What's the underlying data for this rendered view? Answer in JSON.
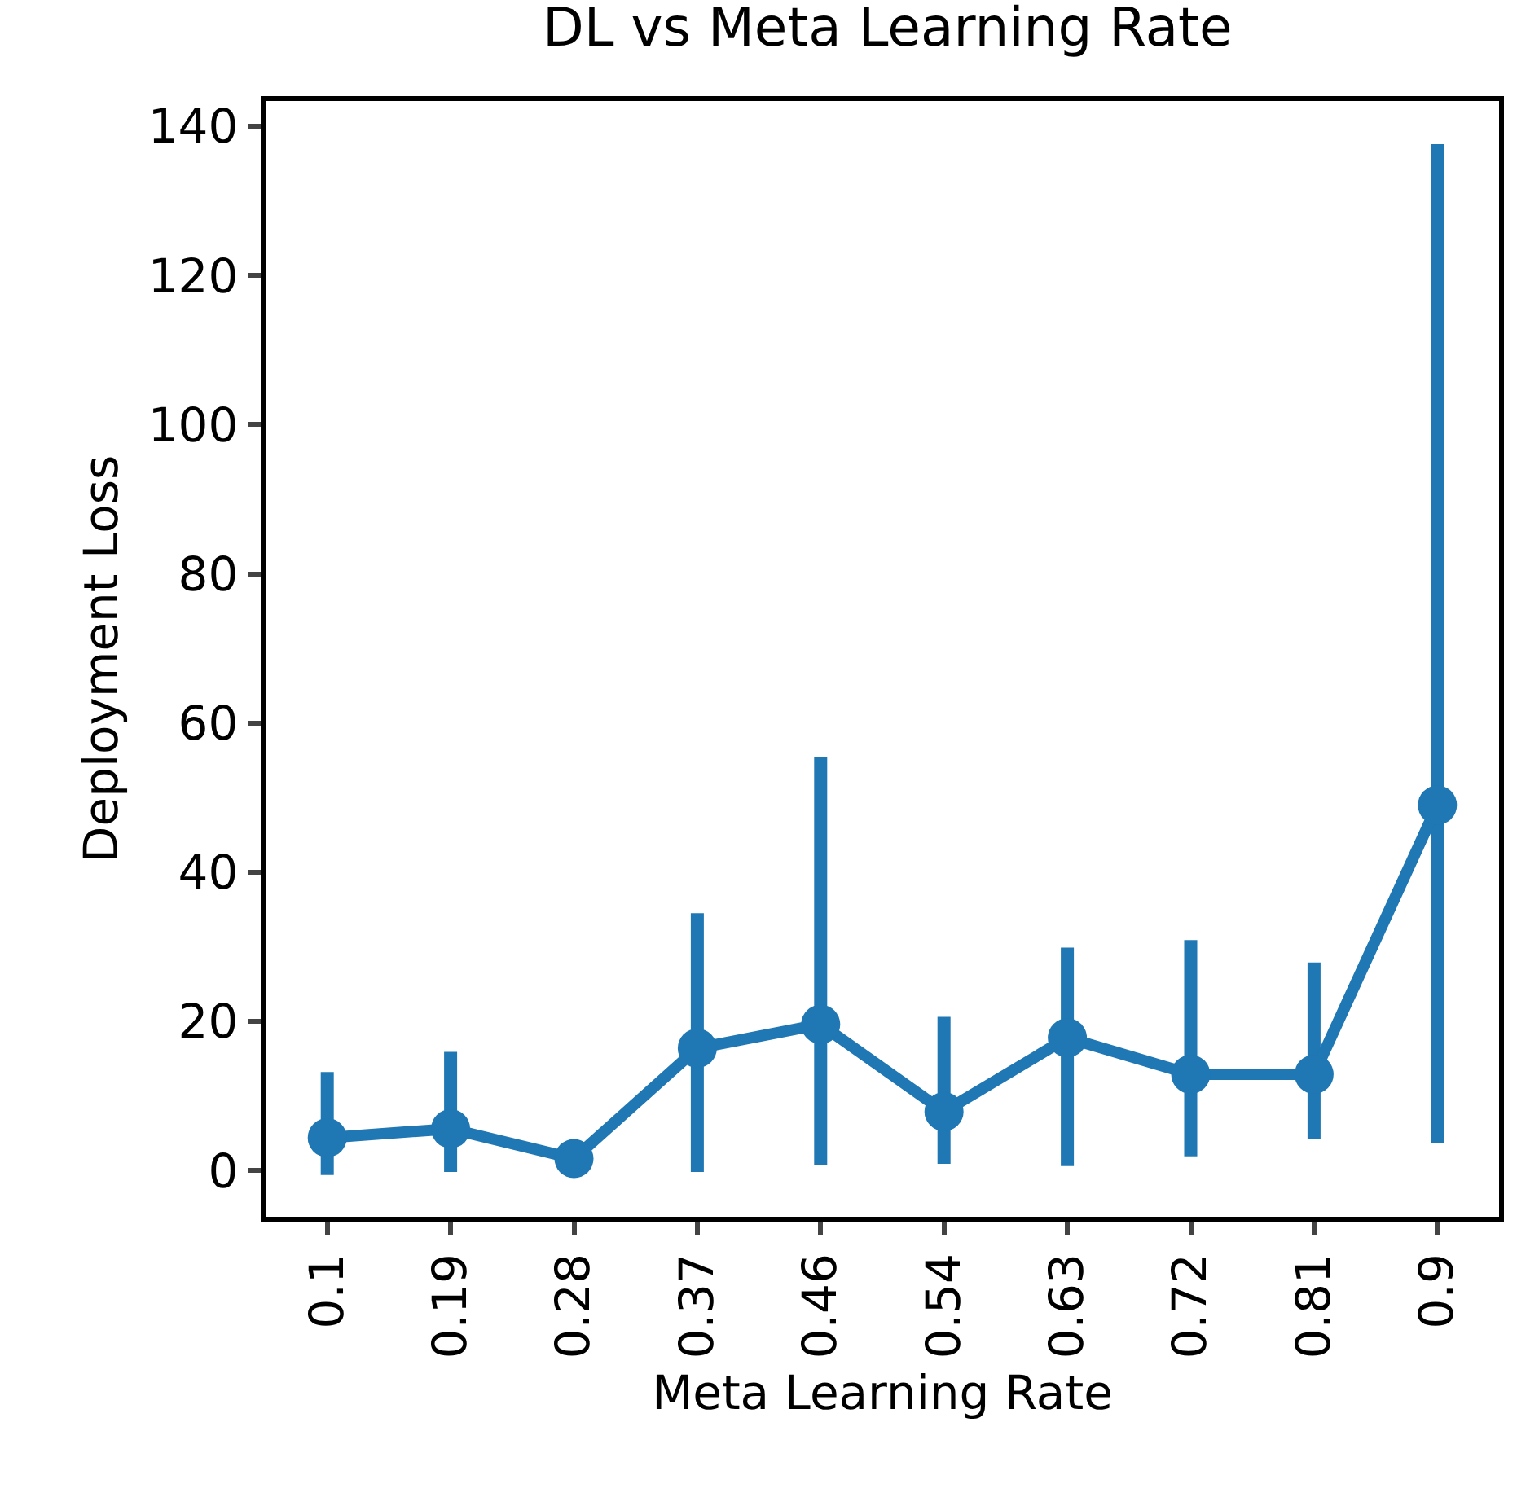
{
  "chart_data": {
    "type": "line",
    "title": "DL vs Meta Learning Rate",
    "xlabel": "Meta Learning Rate",
    "ylabel": "Deployment Loss",
    "categories": [
      "0.1",
      "0.19",
      "0.28",
      "0.37",
      "0.46",
      "0.54",
      "0.63",
      "0.72",
      "0.81",
      "0.9"
    ],
    "series": [
      {
        "color": "#1f77b4",
        "values": [
          4.4,
          5.6,
          1.6,
          16.4,
          19.6,
          7.9,
          17.8,
          12.9,
          12.9,
          49.0
        ],
        "errors": [
          [
            -0.6,
            13.2
          ],
          [
            -0.2,
            15.9
          ],
          null,
          [
            -0.2,
            34.5
          ],
          [
            0.8,
            55.5
          ],
          [
            0.9,
            20.6
          ],
          [
            0.6,
            29.9
          ],
          [
            1.9,
            30.9
          ],
          [
            4.2,
            27.9
          ],
          [
            3.7,
            137.6
          ]
        ]
      }
    ],
    "ylim": [
      -6.2,
      143.4
    ],
    "yticks": [
      0,
      20,
      40,
      60,
      80,
      100,
      120,
      140
    ],
    "marker": "circle",
    "line_style": "solid",
    "grid": false,
    "legend": false
  }
}
